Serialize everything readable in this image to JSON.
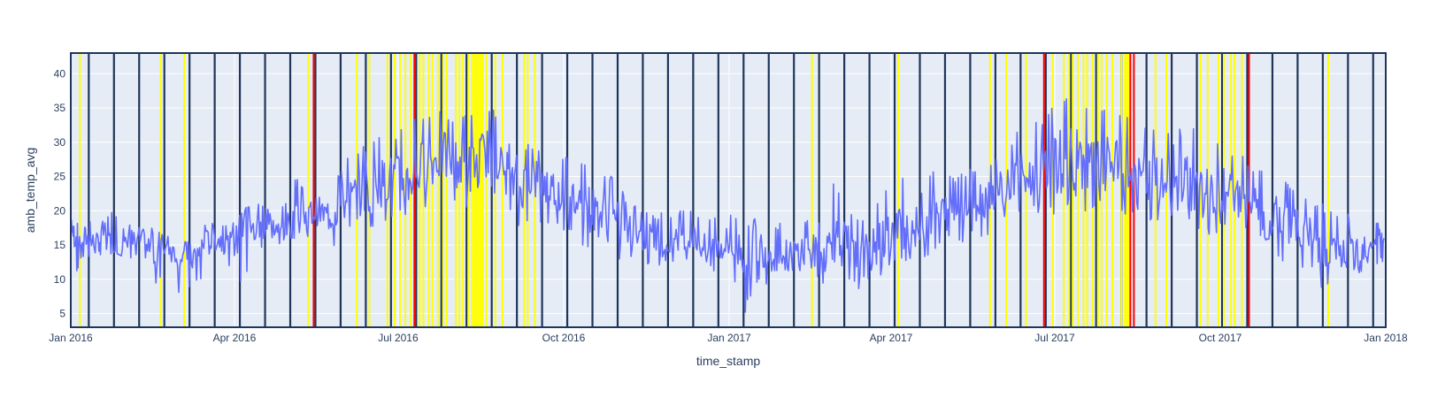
{
  "chart_data": {
    "type": "line",
    "xlabel": "time_stamp",
    "ylabel": "amb_temp_avg",
    "x_range": [
      "2016-01-01",
      "2018-01-01"
    ],
    "ylim": [
      3,
      43
    ],
    "x_ticks": [
      {
        "date": "2016-01-01",
        "label": "Jan 2016"
      },
      {
        "date": "2016-04-01",
        "label": "Apr 2016"
      },
      {
        "date": "2016-07-01",
        "label": "Jul 2016"
      },
      {
        "date": "2016-10-01",
        "label": "Oct 2016"
      },
      {
        "date": "2017-01-01",
        "label": "Jan 2017"
      },
      {
        "date": "2017-04-01",
        "label": "Apr 2017"
      },
      {
        "date": "2017-07-01",
        "label": "Jul 2017"
      },
      {
        "date": "2017-10-01",
        "label": "Oct 2017"
      },
      {
        "date": "2018-01-01",
        "label": "Jan 2018"
      }
    ],
    "y_ticks": [
      5,
      10,
      15,
      20,
      25,
      30,
      35,
      40
    ],
    "grid": true,
    "legend": "none",
    "colors": {
      "series": "#636efa",
      "plot_bg": "#e5ecf6",
      "grid": "#ffffff",
      "text": "#2a3f5f",
      "weekly_marker": "#1f3559",
      "yellow_marker": "#ffff00",
      "red_marker": "#ff0000"
    },
    "series": [
      {
        "x": [
          "2016-01-01",
          "2016-01-05",
          "2016-01-10",
          "2016-01-15",
          "2016-01-20",
          "2016-01-25",
          "2016-02-01",
          "2016-02-08",
          "2016-02-15",
          "2016-02-22",
          "2016-03-01",
          "2016-03-08",
          "2016-03-15",
          "2016-03-22",
          "2016-03-29",
          "2016-04-05",
          "2016-04-12",
          "2016-04-19",
          "2016-04-26",
          "2016-05-03",
          "2016-05-10",
          "2016-05-17",
          "2016-05-24",
          "2016-05-31",
          "2016-06-07",
          "2016-06-14",
          "2016-06-21",
          "2016-06-28",
          "2016-07-05",
          "2016-07-12",
          "2016-07-19",
          "2016-07-26",
          "2016-08-02",
          "2016-08-09",
          "2016-08-16",
          "2016-08-23",
          "2016-08-30",
          "2016-09-06",
          "2016-09-13",
          "2016-09-20",
          "2016-09-27",
          "2016-10-04",
          "2016-10-11",
          "2016-10-18",
          "2016-10-25",
          "2016-11-01",
          "2016-11-08",
          "2016-11-15",
          "2016-11-22",
          "2016-11-29",
          "2016-12-06",
          "2016-12-13",
          "2016-12-20",
          "2016-12-27",
          "2017-01-03",
          "2017-01-10",
          "2017-01-17",
          "2017-01-24",
          "2017-01-31",
          "2017-02-07",
          "2017-02-14",
          "2017-02-21",
          "2017-02-28",
          "2017-03-07",
          "2017-03-14",
          "2017-03-21",
          "2017-03-28",
          "2017-04-04",
          "2017-04-11",
          "2017-04-18",
          "2017-04-25",
          "2017-05-02",
          "2017-05-09",
          "2017-05-16",
          "2017-05-23",
          "2017-05-30",
          "2017-06-06",
          "2017-06-13",
          "2017-06-20",
          "2017-06-27",
          "2017-07-04",
          "2017-07-11",
          "2017-07-18",
          "2017-07-25",
          "2017-08-01",
          "2017-08-08",
          "2017-08-15",
          "2017-08-22",
          "2017-08-29",
          "2017-09-05",
          "2017-09-12",
          "2017-09-19",
          "2017-09-26",
          "2017-10-03",
          "2017-10-10",
          "2017-10-17",
          "2017-10-24",
          "2017-10-31",
          "2017-11-07",
          "2017-11-14",
          "2017-11-21",
          "2017-11-28",
          "2017-12-05",
          "2017-12-12",
          "2017-12-19",
          "2017-12-26",
          "2017-12-31"
        ],
        "y": [
          17,
          16,
          16,
          15,
          17,
          14,
          15,
          16,
          14,
          15,
          14,
          13,
          15,
          16,
          15,
          16,
          17,
          18,
          17,
          18,
          19,
          20,
          19,
          21,
          22,
          23,
          24,
          25,
          24,
          26,
          27,
          28,
          27,
          26,
          28,
          29,
          25,
          23,
          25,
          24,
          23,
          22,
          21,
          20,
          19,
          18,
          17,
          16,
          16,
          15,
          15,
          16,
          14,
          15,
          15,
          14,
          15,
          14,
          13,
          14,
          15,
          13,
          16,
          15,
          13,
          14,
          16,
          17,
          18,
          17,
          19,
          20,
          20,
          21,
          22,
          23,
          24,
          25,
          24,
          26,
          27,
          28,
          27,
          26,
          27,
          26,
          25,
          24,
          24,
          23,
          24,
          23,
          22,
          23,
          22,
          21,
          20,
          19,
          18,
          17,
          16,
          14,
          13,
          14,
          15,
          16,
          16
        ],
        "ranges": [
          [
            12,
            19
          ],
          [
            11,
            19
          ],
          [
            13,
            19
          ],
          [
            13,
            19
          ],
          [
            13,
            19
          ],
          [
            14,
            20
          ],
          [
            13,
            18
          ],
          [
            12,
            18
          ],
          [
            8,
            18
          ],
          [
            10,
            17
          ],
          [
            7,
            15
          ],
          [
            8,
            16
          ],
          [
            10,
            18
          ],
          [
            12,
            19
          ],
          [
            12,
            18
          ],
          [
            9,
            20
          ],
          [
            13,
            22
          ],
          [
            14,
            21
          ],
          [
            14,
            20
          ],
          [
            16,
            25
          ],
          [
            16,
            24
          ],
          [
            15,
            23
          ],
          [
            14,
            22
          ],
          [
            16,
            27
          ],
          [
            17,
            29
          ],
          [
            16,
            30
          ],
          [
            18,
            31
          ],
          [
            19,
            31
          ],
          [
            19,
            33
          ],
          [
            20,
            35
          ],
          [
            21,
            34
          ],
          [
            22,
            35
          ],
          [
            21,
            34
          ],
          [
            20,
            35
          ],
          [
            23,
            36
          ],
          [
            22,
            35
          ],
          [
            20,
            30
          ],
          [
            17,
            29
          ],
          [
            18,
            30
          ],
          [
            18,
            30
          ],
          [
            17,
            28
          ],
          [
            16,
            28
          ],
          [
            15,
            27
          ],
          [
            14,
            27
          ],
          [
            13,
            26
          ],
          [
            12,
            24
          ],
          [
            13,
            21
          ],
          [
            12,
            20
          ],
          [
            12,
            20
          ],
          [
            11,
            20
          ],
          [
            11,
            20
          ],
          [
            12,
            20
          ],
          [
            11,
            19
          ],
          [
            11,
            20
          ],
          [
            9,
            20
          ],
          [
            5,
            19
          ],
          [
            9,
            20
          ],
          [
            9,
            19
          ],
          [
            8,
            18
          ],
          [
            11,
            19
          ],
          [
            11,
            19
          ],
          [
            9,
            19
          ],
          [
            11,
            24
          ],
          [
            9,
            22
          ],
          [
            8,
            19
          ],
          [
            9,
            20
          ],
          [
            11,
            23
          ],
          [
            12,
            25
          ],
          [
            13,
            25
          ],
          [
            13,
            24
          ],
          [
            14,
            26
          ],
          [
            15,
            26
          ],
          [
            15,
            25
          ],
          [
            16,
            27
          ],
          [
            16,
            27
          ],
          [
            18,
            28
          ],
          [
            18,
            30
          ],
          [
            20,
            33
          ],
          [
            19,
            34
          ],
          [
            20,
            34
          ],
          [
            19,
            37
          ],
          [
            22,
            38
          ],
          [
            20,
            36
          ],
          [
            20,
            36
          ],
          [
            22,
            36
          ],
          [
            19,
            35
          ],
          [
            19,
            34
          ],
          [
            18,
            32
          ],
          [
            18,
            32
          ],
          [
            17,
            31
          ],
          [
            18,
            33
          ],
          [
            17,
            32
          ],
          [
            16,
            30
          ],
          [
            17,
            30
          ],
          [
            17,
            29
          ],
          [
            16,
            27
          ],
          [
            15,
            27
          ],
          [
            14,
            26
          ],
          [
            12,
            24
          ],
          [
            12,
            23
          ],
          [
            11,
            22
          ],
          [
            8,
            21
          ],
          [
            8,
            20
          ],
          [
            10,
            20
          ],
          [
            11,
            20
          ],
          [
            12,
            19
          ],
          [
            12,
            19
          ]
        ]
      }
    ],
    "weekly_marker_dates": [
      "2016-01-11",
      "2016-01-25",
      "2016-02-08",
      "2016-02-22",
      "2016-03-07",
      "2016-03-21",
      "2016-04-04",
      "2016-04-18",
      "2016-05-02",
      "2016-05-16",
      "2016-05-30",
      "2016-06-13",
      "2016-06-27",
      "2016-07-11",
      "2016-07-25",
      "2016-08-08",
      "2016-08-22",
      "2016-09-05",
      "2016-09-19",
      "2016-10-03",
      "2016-10-17",
      "2016-10-31",
      "2016-11-14",
      "2016-11-28",
      "2016-12-12",
      "2016-12-26",
      "2017-01-09",
      "2017-01-23",
      "2017-02-06",
      "2017-02-20",
      "2017-03-06",
      "2017-03-20",
      "2017-04-03",
      "2017-04-17",
      "2017-05-01",
      "2017-05-15",
      "2017-05-29",
      "2017-06-12",
      "2017-06-26",
      "2017-07-10",
      "2017-07-24",
      "2017-08-07",
      "2017-08-21",
      "2017-09-04",
      "2017-09-18",
      "2017-10-02",
      "2017-10-16",
      "2017-10-30",
      "2017-11-13",
      "2017-11-27",
      "2017-12-11",
      "2017-12-25"
    ],
    "yellow_marker_dates": [
      "2016-01-06",
      "2016-02-20",
      "2016-03-04",
      "2016-05-12",
      "2016-06-08",
      "2016-06-15",
      "2016-06-25",
      "2016-06-29",
      "2016-07-02",
      "2016-07-05",
      "2016-07-08",
      "2016-07-13",
      "2016-07-15",
      "2016-07-18",
      "2016-07-20",
      "2016-07-23",
      "2016-07-26",
      "2016-07-28",
      "2016-08-02",
      "2016-08-04",
      "2016-08-06",
      "2016-08-09",
      "2016-08-11",
      "2016-08-12",
      "2016-08-13",
      "2016-08-14",
      "2016-08-15",
      "2016-08-16",
      "2016-08-17",
      "2016-08-19",
      "2016-08-24",
      "2016-08-28",
      "2016-09-09",
      "2016-09-11",
      "2016-09-15",
      "2017-02-16",
      "2017-04-05",
      "2017-05-26",
      "2017-06-04",
      "2017-06-15",
      "2017-06-30",
      "2017-07-06",
      "2017-07-09",
      "2017-07-11",
      "2017-07-14",
      "2017-07-17",
      "2017-07-19",
      "2017-07-22",
      "2017-07-25",
      "2017-07-27",
      "2017-07-30",
      "2017-08-02",
      "2017-08-07",
      "2017-08-09",
      "2017-08-10",
      "2017-08-11",
      "2017-08-26",
      "2017-09-01",
      "2017-09-20",
      "2017-09-24",
      "2017-09-30",
      "2017-10-03",
      "2017-10-07",
      "2017-10-09",
      "2017-10-13",
      "2017-11-30"
    ],
    "red_marker_dates": [
      "2016-05-15",
      "2016-07-10",
      "2017-06-25",
      "2017-08-12",
      "2017-08-14",
      "2017-10-17"
    ]
  }
}
